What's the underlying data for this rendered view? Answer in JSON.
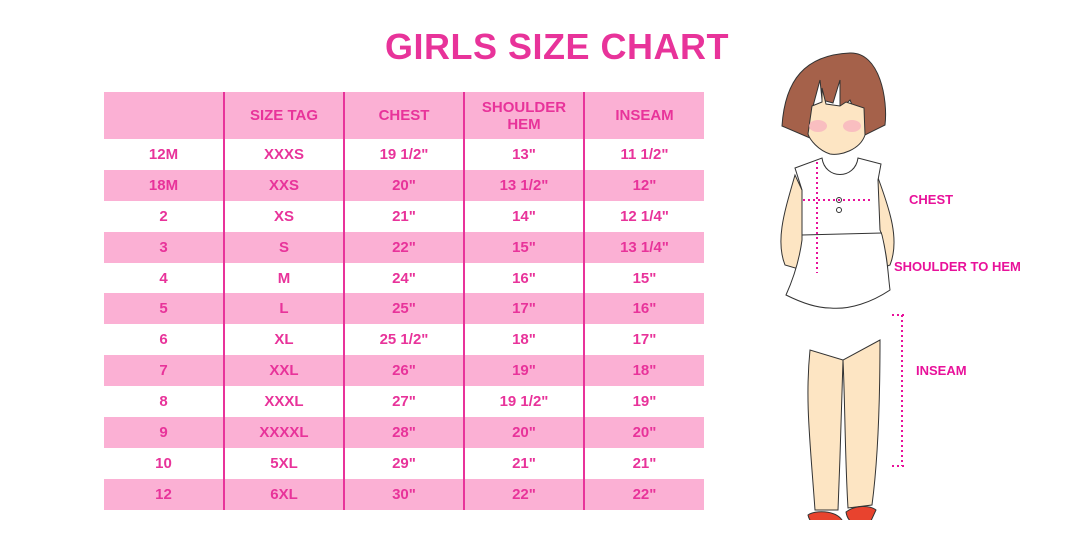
{
  "title": "GIRLS SIZE CHART",
  "colors": {
    "accent": "#e8339a",
    "row_pink": "#fbb0d4"
  },
  "table": {
    "headers": [
      "",
      "SIZE TAG",
      "CHEST",
      "SHOULDER HEM",
      "INSEAM"
    ],
    "rows": [
      [
        "12M",
        "XXXS",
        "19 1/2\"",
        "13\"",
        "11 1/2\""
      ],
      [
        "18M",
        "XXS",
        "20\"",
        "13 1/2\"",
        "12\""
      ],
      [
        "2",
        "XS",
        "21\"",
        "14\"",
        "12 1/4\""
      ],
      [
        "3",
        "S",
        "22\"",
        "15\"",
        "13 1/4\""
      ],
      [
        "4",
        "M",
        "24\"",
        "16\"",
        "15\""
      ],
      [
        "5",
        "L",
        "25\"",
        "17\"",
        "16\""
      ],
      [
        "6",
        "XL",
        "25 1/2\"",
        "18\"",
        "17\""
      ],
      [
        "7",
        "XXL",
        "26\"",
        "19\"",
        "18\""
      ],
      [
        "8",
        "XXXL",
        "27\"",
        "19 1/2\"",
        "19\""
      ],
      [
        "9",
        "XXXXL",
        "28\"",
        "20\"",
        "20\""
      ],
      [
        "10",
        "5XL",
        "29\"",
        "21\"",
        "21\""
      ],
      [
        "12",
        "6XL",
        "30\"",
        "22\"",
        "22\""
      ]
    ]
  },
  "figure": {
    "labels": {
      "chest": "CHEST",
      "shoulder_to_hem": "SHOULDER TO HEM",
      "inseam": "INSEAM"
    }
  }
}
